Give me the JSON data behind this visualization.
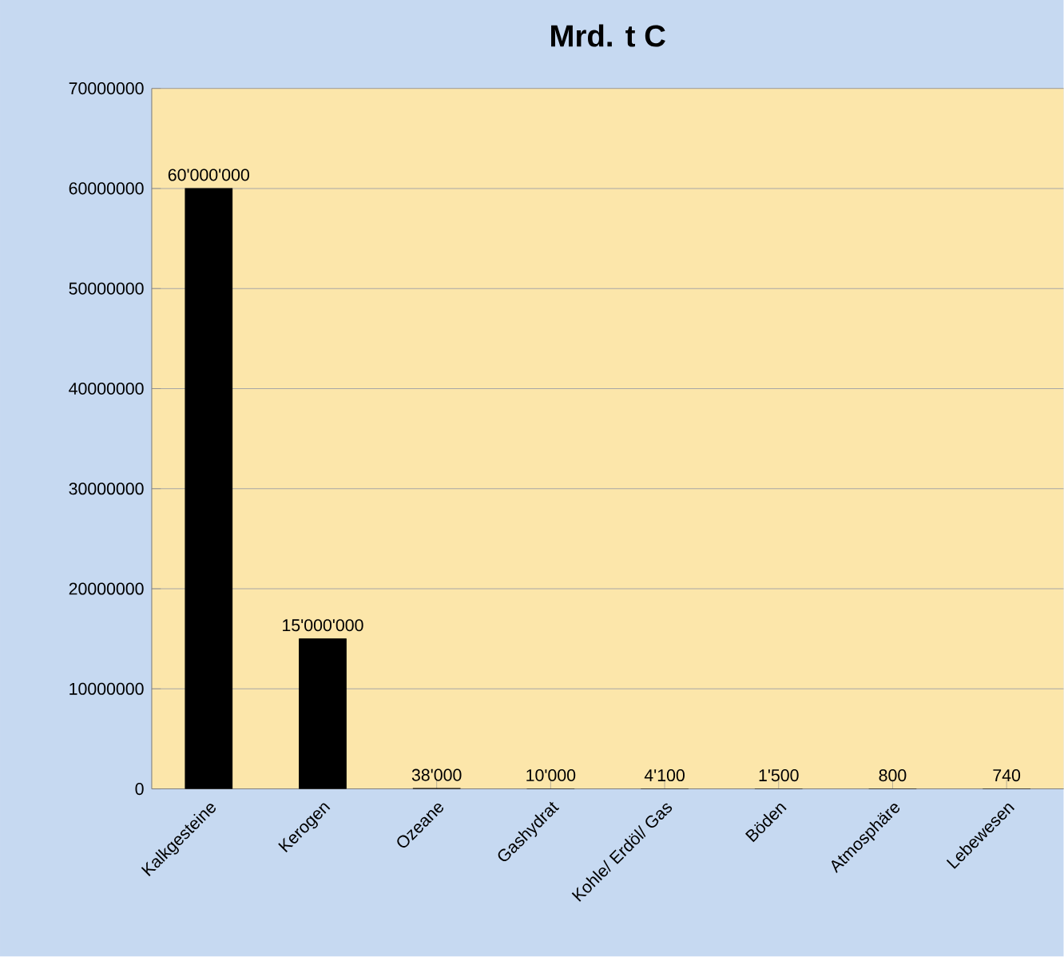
{
  "chart_data": {
    "type": "bar",
    "title": "Mrd. t C",
    "categories": [
      "Kalkgesteine",
      "Kerogen",
      "Ozeane",
      "Gashydrat",
      "Kohle/ Erdöl/ Gas",
      "Böden",
      "Atmosphäre",
      "Lebewesen"
    ],
    "values": [
      60000000,
      15000000,
      38000,
      10000,
      4100,
      1500,
      800,
      740
    ],
    "value_labels": [
      "60'000'000",
      "15'000'000",
      "38'000",
      "10'000",
      "4'100",
      "1'500",
      "800",
      "740"
    ],
    "color": "#000000",
    "ylim": [
      0,
      70000000
    ],
    "yticks": [
      0,
      10000000,
      20000000,
      30000000,
      40000000,
      50000000,
      60000000,
      70000000
    ],
    "grid": "y"
  }
}
